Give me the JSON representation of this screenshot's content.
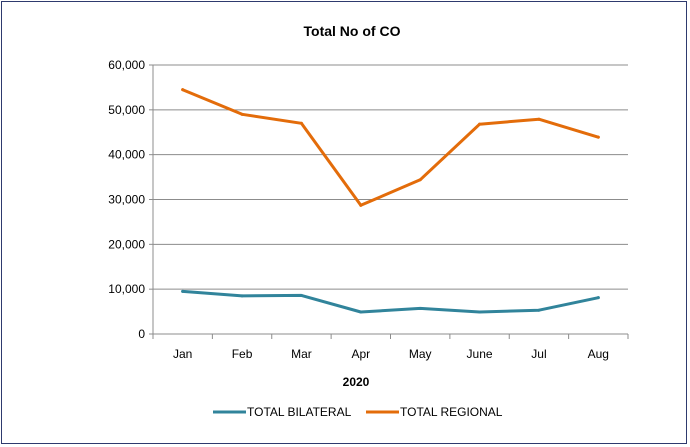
{
  "chart_data": {
    "type": "line",
    "title": "Total No of CO",
    "xlabel": "2020",
    "ylabel": "",
    "categories": [
      "Jan",
      "Feb",
      "Mar",
      "Apr",
      "May",
      "June",
      "Jul",
      "Aug"
    ],
    "ylim": [
      0,
      60000
    ],
    "yticks": [
      0,
      10000,
      20000,
      30000,
      40000,
      50000,
      60000
    ],
    "ytick_labels": [
      "0",
      "10,000",
      "20,000",
      "30,000",
      "40,000",
      "50,000",
      "60,000"
    ],
    "grid": true,
    "legend_position": "bottom",
    "series": [
      {
        "name": "TOTAL BILATERAL",
        "color": "#31849b",
        "values": [
          9500,
          8500,
          8600,
          4900,
          5700,
          4900,
          5300,
          8100
        ]
      },
      {
        "name": "TOTAL REGIONAL",
        "color": "#e36c0a",
        "values": [
          54500,
          49000,
          47000,
          28700,
          34400,
          46800,
          47900,
          43900
        ]
      }
    ]
  }
}
